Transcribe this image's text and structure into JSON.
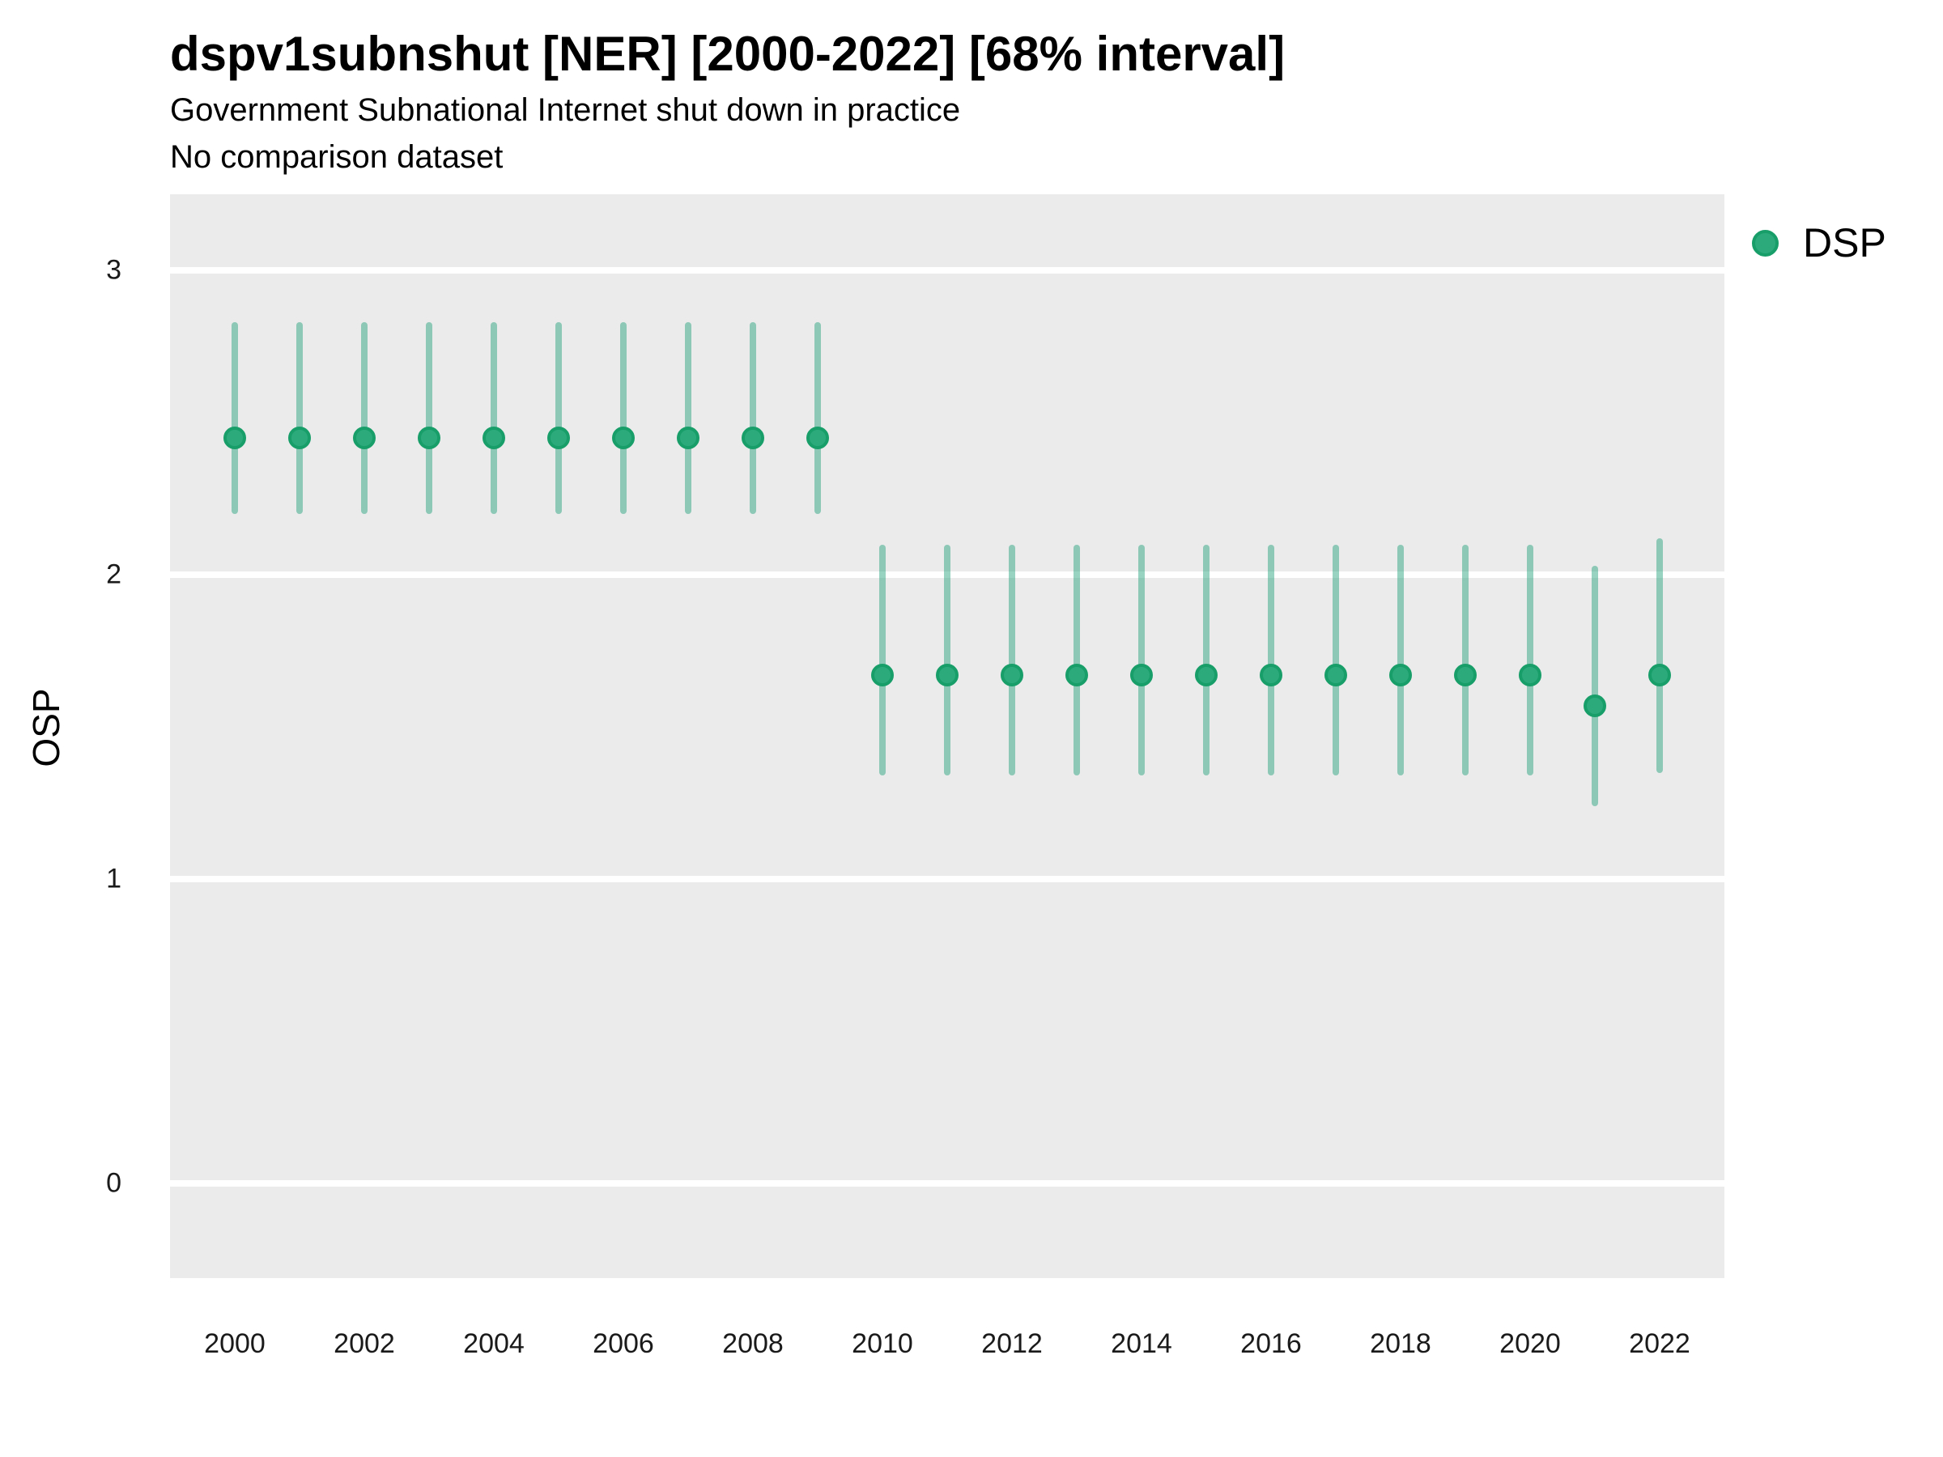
{
  "header": {
    "title": "dspv1subnshut [NER] [2000-2022] [68% interval]",
    "subtitle": "Government Subnational Internet shut down in practice",
    "note": "No comparison dataset"
  },
  "chart_data": {
    "type": "scatter",
    "mark": "point-with-error-bar",
    "title": "dspv1subnshut [NER] [2000-2022] [68% interval]",
    "subtitle": "Government Subnational Internet shut down in practice",
    "note": "No comparison dataset",
    "xlabel": "",
    "ylabel": "OSP",
    "legend": {
      "label": "DSP",
      "position": "right-top"
    },
    "x": [
      2000,
      2001,
      2002,
      2003,
      2004,
      2005,
      2006,
      2007,
      2008,
      2009,
      2010,
      2011,
      2012,
      2013,
      2014,
      2015,
      2016,
      2017,
      2018,
      2019,
      2020,
      2021,
      2022
    ],
    "series": [
      {
        "name": "DSP",
        "est": [
          2.45,
          2.45,
          2.45,
          2.45,
          2.45,
          2.45,
          2.45,
          2.45,
          2.45,
          2.45,
          1.67,
          1.67,
          1.67,
          1.67,
          1.67,
          1.67,
          1.67,
          1.67,
          1.67,
          1.67,
          1.67,
          1.57,
          1.67
        ],
        "lo": [
          2.2,
          2.2,
          2.2,
          2.2,
          2.2,
          2.2,
          2.2,
          2.2,
          2.2,
          2.2,
          1.34,
          1.34,
          1.34,
          1.34,
          1.34,
          1.34,
          1.34,
          1.34,
          1.34,
          1.34,
          1.34,
          1.24,
          1.35
        ],
        "hi": [
          2.83,
          2.83,
          2.83,
          2.83,
          2.83,
          2.83,
          2.83,
          2.83,
          2.83,
          2.83,
          2.1,
          2.1,
          2.1,
          2.1,
          2.1,
          2.1,
          2.1,
          2.1,
          2.1,
          2.1,
          2.1,
          2.03,
          2.12
        ]
      }
    ],
    "interval_level": "68%",
    "ylim": [
      -0.31,
      3.25
    ],
    "xlim": [
      1999,
      2023
    ],
    "yticks": [
      "3",
      "2",
      "1",
      "0"
    ],
    "ytick_values": [
      3,
      2,
      1,
      0
    ],
    "xticks": [
      "2000",
      "2002",
      "2004",
      "2006",
      "2008",
      "2010",
      "2012",
      "2014",
      "2016",
      "2018",
      "2020",
      "2022"
    ],
    "xtick_values": [
      2000,
      2002,
      2004,
      2006,
      2008,
      2010,
      2012,
      2014,
      2016,
      2018,
      2020,
      2022
    ],
    "grid": "horizontal-major-only",
    "legend_position": "right-top",
    "colors": {
      "point_fill": "#2caa7c",
      "point_stroke": "#189e69",
      "interval_bar": "rgba(27,158,119,0.45)",
      "panel_background": "#ebebeb",
      "gridline": "#ffffff",
      "text": "#000000",
      "tick_text": "#1a1a1a"
    }
  }
}
